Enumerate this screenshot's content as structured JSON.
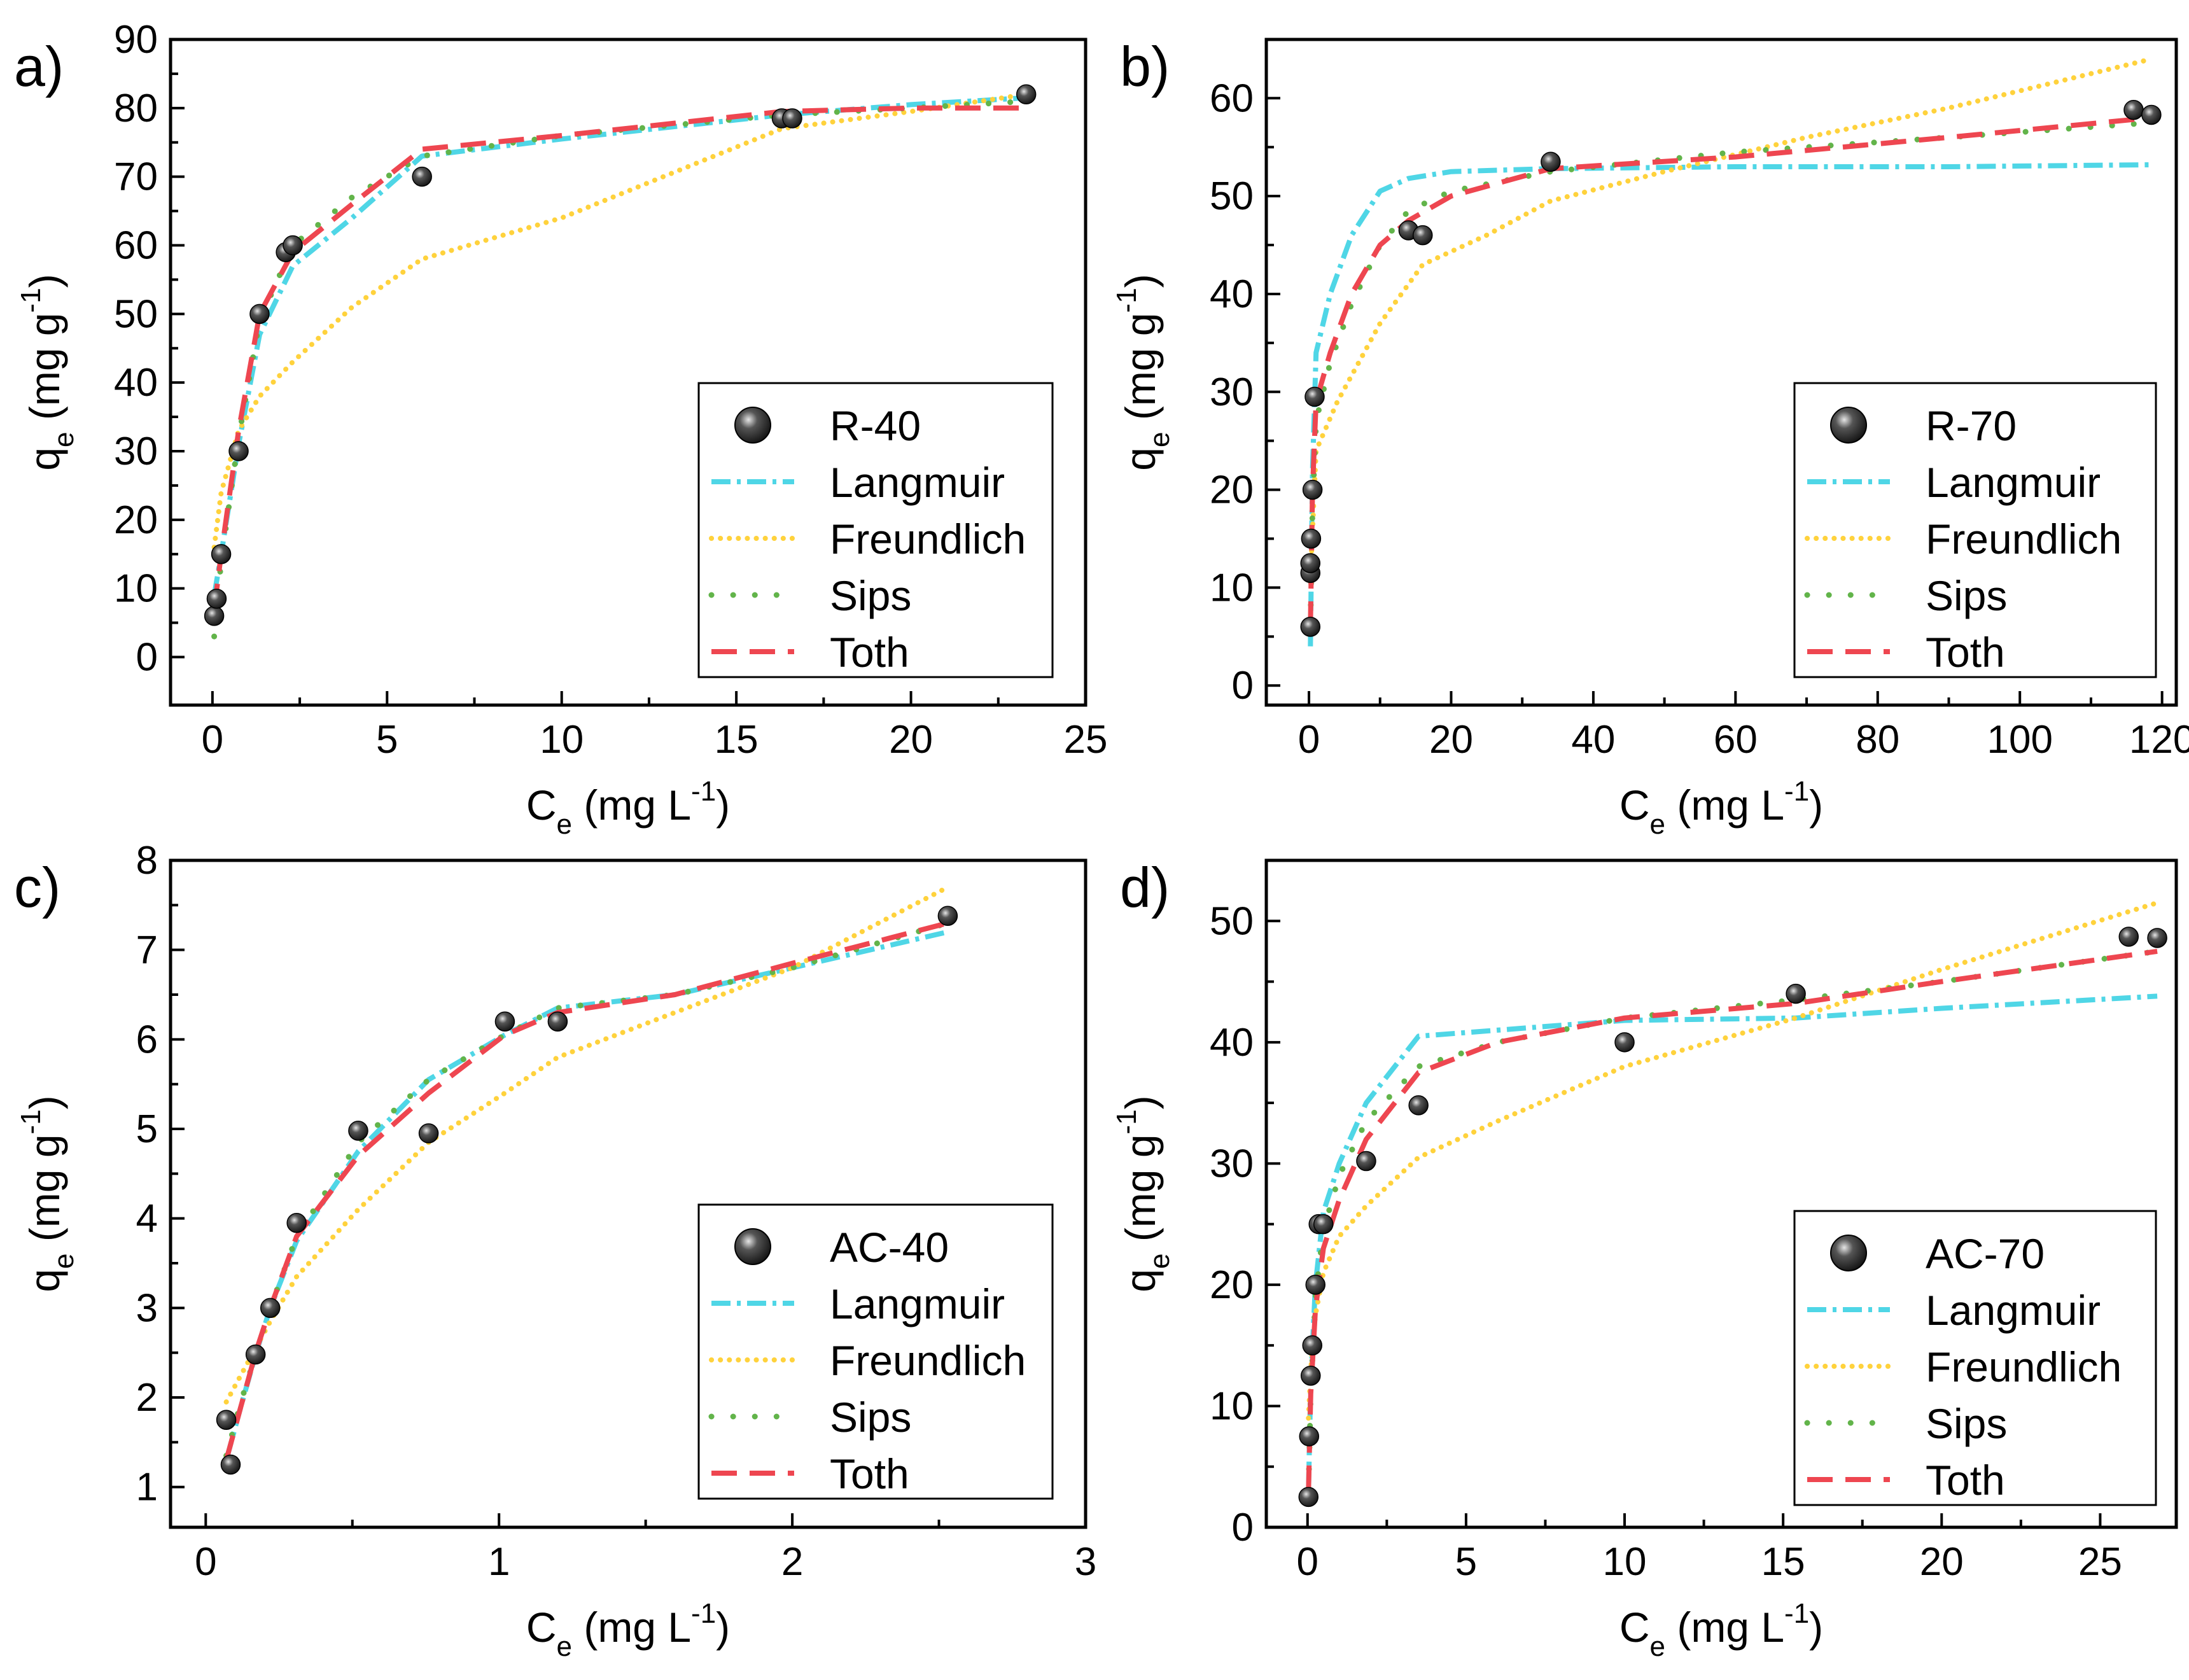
{
  "figure": {
    "legend_labels": [
      "Langmuir",
      "Freundlich",
      "Sips",
      "Toth"
    ]
  },
  "styles": {
    "langmuir": "#4fd6e6",
    "freundlich": "#ffd23c",
    "sips": "#62b44a",
    "toth": "#ee4650",
    "marker": "#111111",
    "marker_highlight": "#e6e6e6",
    "axis": "#000000"
  },
  "chart_data": [
    {
      "type": "scatter",
      "panel_label": "a)",
      "ylabel_main": "q",
      "ylabel_sub": "e",
      "ylabel_units": " (mg g",
      "ylabel_sup": "-1",
      "ylabel_close": ")",
      "xlabel_main": "C",
      "xlabel_sub": "e",
      "xlabel_units": " (mg L",
      "xlabel_sup": "-1",
      "xlabel_close": ")",
      "xlim": [
        -1.2,
        25
      ],
      "ylim": [
        -7,
        90
      ],
      "xticks": [
        0,
        5,
        10,
        15,
        20,
        25
      ],
      "yticks": [
        0,
        10,
        20,
        30,
        40,
        50,
        60,
        70,
        80,
        90
      ],
      "xminor": 2.5,
      "yminor": 5,
      "legend_position": "bottom-right",
      "series": [
        {
          "name": "R-40",
          "kind": "points",
          "x": [
            0.05,
            0.12,
            0.25,
            0.75,
            1.35,
            2.1,
            2.3,
            6.0,
            16.3,
            16.6,
            23.3
          ],
          "y": [
            6,
            8.5,
            15,
            30,
            50,
            59,
            60,
            70,
            78.5,
            78.5,
            82
          ]
        },
        {
          "name": "Langmuir",
          "kind": "dashdot",
          "x": [
            0.05,
            0.25,
            0.75,
            1.35,
            2.3,
            4.0,
            6.0,
            10,
            16.3,
            20,
            23.3
          ],
          "y": [
            9,
            15,
            31,
            47,
            57,
            64,
            73,
            75.5,
            79,
            80.5,
            81.5
          ]
        },
        {
          "name": "Freundlich",
          "kind": "dotted",
          "x": [
            0.05,
            0.25,
            0.75,
            1.35,
            2.3,
            4.0,
            6.0,
            10,
            16.3,
            20,
            23.3
          ],
          "y": [
            16,
            24,
            33,
            38,
            43,
            51,
            58,
            64,
            77,
            79.5,
            82
          ]
        },
        {
          "name": "Sips",
          "kind": "sparse",
          "x": [
            0.05,
            0.25,
            0.75,
            1.35,
            2.3,
            4.0,
            6.0,
            10,
            16.3,
            20,
            23.3
          ],
          "y": [
            3,
            14,
            32,
            49,
            60,
            67,
            73,
            76,
            79,
            80,
            81
          ]
        },
        {
          "name": "Toth",
          "kind": "dashed",
          "x": [
            0.05,
            0.25,
            0.75,
            1.35,
            2.3,
            4.0,
            6.0,
            10,
            16.3,
            20,
            23.3
          ],
          "y": [
            7,
            15,
            33,
            50,
            59,
            66,
            74,
            76,
            79.5,
            80,
            80
          ]
        }
      ]
    },
    {
      "type": "scatter",
      "panel_label": "b)",
      "ylabel_main": "q",
      "ylabel_sub": "e",
      "ylabel_units": " (mg g",
      "ylabel_sup": "-1",
      "ylabel_close": ")",
      "xlabel_main": "C",
      "xlabel_sub": "e",
      "xlabel_units": " (mg L",
      "xlabel_sup": "-1",
      "xlabel_close": ")",
      "xlim": [
        -6,
        122
      ],
      "ylim": [
        -2,
        66
      ],
      "xticks": [
        0,
        20,
        40,
        60,
        80,
        100,
        120
      ],
      "yticks": [
        0,
        10,
        20,
        30,
        40,
        50,
        60
      ],
      "xminor": 10,
      "yminor": 5,
      "legend_position": "bottom-right",
      "series": [
        {
          "name": "R-70",
          "kind": "points",
          "x": [
            0.2,
            0.2,
            0.2,
            0.3,
            0.5,
            0.8,
            14,
            16,
            34,
            116,
            118.5
          ],
          "y": [
            6,
            11.5,
            12.5,
            15,
            20,
            29.5,
            46.5,
            46,
            53.5,
            58.8,
            58.3
          ]
        },
        {
          "name": "Langmuir",
          "kind": "dashdot",
          "x": [
            0.2,
            0.5,
            1,
            3,
            6,
            10,
            14,
            20,
            34,
            60,
            90,
            118.5
          ],
          "y": [
            4,
            22,
            34,
            40,
            46,
            50.5,
            51.8,
            52.5,
            52.8,
            53,
            53,
            53.2
          ]
        },
        {
          "name": "Freundlich",
          "kind": "dotted",
          "x": [
            0.2,
            1,
            4,
            10,
            16,
            25,
            34,
            50,
            70,
            90,
            118.5
          ],
          "y": [
            11,
            24,
            29,
            37,
            43,
            46,
            49.5,
            52.5,
            56,
            59,
            64
          ]
        },
        {
          "name": "Sips",
          "kind": "sparse",
          "x": [
            0.2,
            0.5,
            1,
            3,
            6,
            10,
            14,
            20,
            34,
            60,
            90,
            118.5
          ],
          "y": [
            6,
            18,
            27,
            33,
            39,
            45,
            48.5,
            50.5,
            52.5,
            54.5,
            56,
            57.5
          ]
        },
        {
          "name": "Toth",
          "kind": "dashed",
          "x": [
            0.2,
            0.5,
            1,
            3,
            6,
            10,
            14,
            20,
            34,
            60,
            90,
            118.5
          ],
          "y": [
            6,
            20,
            29,
            34,
            40,
            45,
            47.5,
            50,
            52.8,
            54,
            56,
            58
          ]
        }
      ]
    },
    {
      "type": "scatter",
      "panel_label": "c)",
      "ylabel_main": "q",
      "ylabel_sub": "e",
      "ylabel_units": " (mg g",
      "ylabel_sup": "-1",
      "ylabel_close": ")",
      "xlabel_main": "C",
      "xlabel_sub": "e",
      "xlabel_units": " (mg L",
      "xlabel_sup": "-1",
      "xlabel_close": ")",
      "xlim": [
        -0.12,
        3
      ],
      "ylim": [
        0.55,
        8
      ],
      "xticks": [
        0,
        1,
        2,
        3
      ],
      "yticks": [
        1,
        2,
        3,
        4,
        5,
        6,
        7,
        8
      ],
      "xminor": 0.5,
      "yminor": 0.5,
      "legend_position": "bottom-right",
      "series": [
        {
          "name": "AC-40",
          "kind": "points",
          "x": [
            0.07,
            0.085,
            0.17,
            0.22,
            0.31,
            0.52,
            0.76,
            1.02,
            1.2,
            2.53
          ],
          "y": [
            1.75,
            1.25,
            2.48,
            3.0,
            3.95,
            4.98,
            4.95,
            6.2,
            6.2,
            7.38
          ]
        },
        {
          "name": "Langmuir",
          "kind": "dashdot",
          "x": [
            0.07,
            0.12,
            0.17,
            0.22,
            0.31,
            0.52,
            0.76,
            1.02,
            1.2,
            1.6,
            2.0,
            2.53
          ],
          "y": [
            1.3,
            1.9,
            2.48,
            3.0,
            3.75,
            4.75,
            5.55,
            6.05,
            6.35,
            6.5,
            6.8,
            7.2
          ]
        },
        {
          "name": "Freundlich",
          "kind": "dotted",
          "x": [
            0.07,
            0.12,
            0.17,
            0.22,
            0.31,
            0.52,
            0.76,
            1.02,
            1.2,
            1.6,
            2.0,
            2.53
          ],
          "y": [
            1.95,
            2.25,
            2.55,
            2.85,
            3.35,
            4.1,
            4.85,
            5.4,
            5.8,
            6.3,
            6.8,
            7.7
          ]
        },
        {
          "name": "Sips",
          "kind": "sparse",
          "x": [
            0.07,
            0.12,
            0.17,
            0.22,
            0.31,
            0.52,
            0.76,
            1.02,
            1.2,
            1.6,
            2.0,
            2.53
          ],
          "y": [
            1.35,
            1.95,
            2.48,
            3.0,
            3.8,
            4.85,
            5.55,
            6.05,
            6.35,
            6.5,
            6.8,
            7.3
          ]
        },
        {
          "name": "Toth",
          "kind": "dashed",
          "x": [
            0.07,
            0.12,
            0.17,
            0.22,
            0.31,
            0.52,
            0.76,
            1.02,
            1.2,
            1.6,
            2.0,
            2.53
          ],
          "y": [
            1.3,
            1.9,
            2.5,
            3.0,
            3.8,
            4.7,
            5.4,
            6.05,
            6.3,
            6.5,
            6.85,
            7.3
          ]
        }
      ]
    },
    {
      "type": "scatter",
      "panel_label": "d)",
      "ylabel_main": "q",
      "ylabel_sub": "e",
      "ylabel_units": " (mg g",
      "ylabel_sup": "-1",
      "ylabel_close": ")",
      "xlabel_main": "C",
      "xlabel_sub": "e",
      "xlabel_units": " (mg L",
      "xlabel_sup": "-1",
      "xlabel_close": ")",
      "xlim": [
        -1.3,
        27.4
      ],
      "ylim": [
        0,
        55
      ],
      "xticks": [
        0,
        5,
        10,
        15,
        20,
        25
      ],
      "yticks": [
        0,
        10,
        20,
        30,
        40,
        50
      ],
      "xminor": 2.5,
      "yminor": 5,
      "legend_position": "bottom-right",
      "series": [
        {
          "name": "AC-70",
          "kind": "points",
          "x": [
            0.03,
            0.05,
            0.1,
            0.15,
            0.25,
            0.35,
            0.5,
            1.85,
            3.5,
            10.0,
            15.4,
            25.9,
            26.8
          ],
          "y": [
            2.5,
            7.5,
            12.5,
            15,
            20,
            25,
            25,
            30.2,
            34.8,
            40,
            44,
            48.7,
            48.6
          ]
        },
        {
          "name": "Langmuir",
          "kind": "dashdot",
          "x": [
            0.03,
            0.1,
            0.25,
            0.5,
            1.0,
            1.85,
            3.5,
            6,
            10,
            15.4,
            20,
            26.8
          ],
          "y": [
            3,
            12,
            20,
            26,
            30,
            35,
            40.5,
            41,
            41.8,
            42,
            42.8,
            43.8
          ]
        },
        {
          "name": "Freundlich",
          "kind": "dotted",
          "x": [
            0.03,
            0.1,
            0.25,
            0.5,
            1.0,
            1.85,
            3.5,
            6,
            10,
            15.4,
            20,
            26.8
          ],
          "y": [
            9,
            13,
            17.5,
            21,
            24,
            26.5,
            30.5,
            33.5,
            38,
            42,
            46,
            51.5
          ]
        },
        {
          "name": "Sips",
          "kind": "sparse",
          "x": [
            0.03,
            0.1,
            0.25,
            0.5,
            1.0,
            1.85,
            3.5,
            6,
            10,
            15.4,
            20,
            26.8
          ],
          "y": [
            3,
            11,
            19,
            24.5,
            29,
            33.5,
            38,
            40,
            42,
            43.5,
            45,
            47.5
          ]
        },
        {
          "name": "Toth",
          "kind": "dashed",
          "x": [
            0.03,
            0.1,
            0.25,
            0.5,
            1.0,
            1.85,
            3.5,
            6,
            10,
            15.4,
            20,
            26.8
          ],
          "y": [
            3,
            11,
            18,
            23,
            27,
            32,
            37.5,
            40,
            42,
            43.2,
            45,
            47.5
          ]
        }
      ]
    }
  ]
}
